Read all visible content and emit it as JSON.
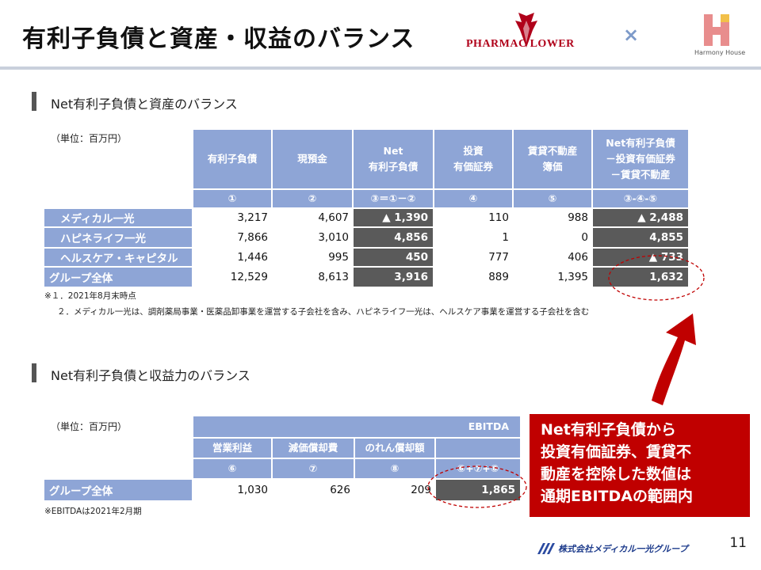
{
  "header": {
    "title": "有利子負債と資産・収益のバランス",
    "logo_left": "PHARMAC LOWER",
    "times": "×",
    "logo_right_sub": "Harmony House"
  },
  "section1": {
    "title": "Net有利子負債と資産のバランス",
    "unit": "（単位：百万円）",
    "columns": [
      {
        "label": [
          "有利子負債"
        ],
        "key": "①"
      },
      {
        "label": [
          "現預金"
        ],
        "key": "②"
      },
      {
        "label": [
          "Net",
          "有利子負債"
        ],
        "key": "③＝①－②"
      },
      {
        "label": [
          "投資",
          "有価証券"
        ],
        "key": "④"
      },
      {
        "label": [
          "賃貸不動産",
          "簿価"
        ],
        "key": "⑤"
      },
      {
        "label": [
          "Net有利子負債",
          "－投資有価証券",
          "－賃貸不動産"
        ],
        "key": "③-④-⑤"
      }
    ],
    "rows": [
      {
        "label": "メディカル一光",
        "values": [
          "3,217",
          "4,607",
          "▲ 1,390",
          "110",
          "988",
          "▲ 2,488"
        ]
      },
      {
        "label": "ハピネライフ一光",
        "values": [
          "7,866",
          "3,010",
          "4,856",
          "1",
          "0",
          "4,855"
        ]
      },
      {
        "label": "ヘルスケア・キャピタル",
        "values": [
          "1,446",
          "995",
          "450",
          "777",
          "406",
          "▲ 733"
        ]
      },
      {
        "label": "グループ全体",
        "values": [
          "12,529",
          "8,613",
          "3,916",
          "889",
          "1,395",
          "1,632"
        ]
      }
    ],
    "notes": [
      "※１．2021年8月末時点",
      "２．メディカル一光は、調剤薬局事業・医薬品卸事業を運営する子会社を含み、ハピネライフ一光は、ヘルスケア事業を運営する子会社を含む"
    ]
  },
  "section2": {
    "title": "Net有利子負債と収益力のバランス",
    "unit": "（単位：百万円）",
    "ebitda_header": "EBITDA",
    "columns": [
      {
        "label": "営業利益",
        "key": "⑥"
      },
      {
        "label": "減価償却費",
        "key": "⑦"
      },
      {
        "label": "のれん償却額",
        "key": "⑧"
      }
    ],
    "ebitda_key": "⑥+⑦+⑧",
    "row": {
      "label": "グループ全体",
      "values": [
        "1,030",
        "626",
        "209",
        "1,865"
      ]
    },
    "note": "※EBITDAは2021年2月期"
  },
  "callout": {
    "lines": [
      "Net有利子負債から",
      "投資有価証券、賃貸不",
      "動産を控除した数値は",
      "通期EBITDAの範囲内"
    ]
  },
  "footer": {
    "company": "株式会社メディカル一光グループ",
    "page_number": "11"
  },
  "colors": {
    "header_fill": "#8ea5d6",
    "dark_fill": "#5a5a5a",
    "callout_fill": "#c00000",
    "accent_red": "#c00000"
  }
}
